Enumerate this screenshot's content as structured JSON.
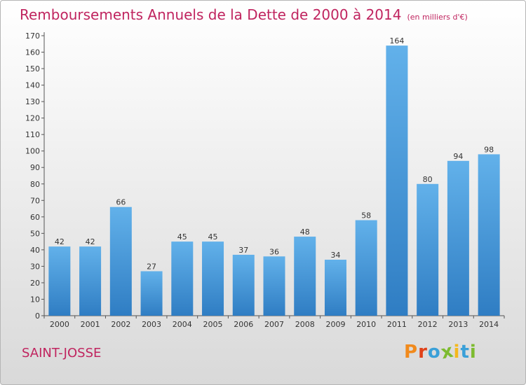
{
  "header": {
    "title": "Remboursements Annuels de la Dette de 2000 à 2014",
    "subtitle": "(en milliers d'€)"
  },
  "footer": {
    "place": "SAINT-JOSSE",
    "logo_text": "Proxiti"
  },
  "colors": {
    "title": "#c0245f",
    "bar_light": "#62b1ea",
    "bar_dark": "#2f7dc3",
    "logo": [
      "#f18a1c",
      "#e0421a",
      "#3aa0d8",
      "#7dbb2f",
      "#f4b81c",
      "#3aa0d8",
      "#7dbb2f"
    ]
  },
  "chart_data": {
    "type": "bar",
    "title": "Remboursements Annuels de la Dette de 2000 à 2014",
    "subtitle": "(en milliers d'€)",
    "xlabel": "",
    "ylabel": "",
    "categories": [
      "2000",
      "2001",
      "2002",
      "2003",
      "2004",
      "2005",
      "2006",
      "2007",
      "2008",
      "2009",
      "2010",
      "2011",
      "2012",
      "2013",
      "2014"
    ],
    "values": [
      42,
      42,
      66,
      27,
      45,
      45,
      37,
      36,
      48,
      34,
      58,
      164,
      80,
      94,
      98
    ],
    "ylim": [
      0,
      170
    ],
    "ytick_step": 10,
    "grid": false,
    "legend": "none"
  }
}
